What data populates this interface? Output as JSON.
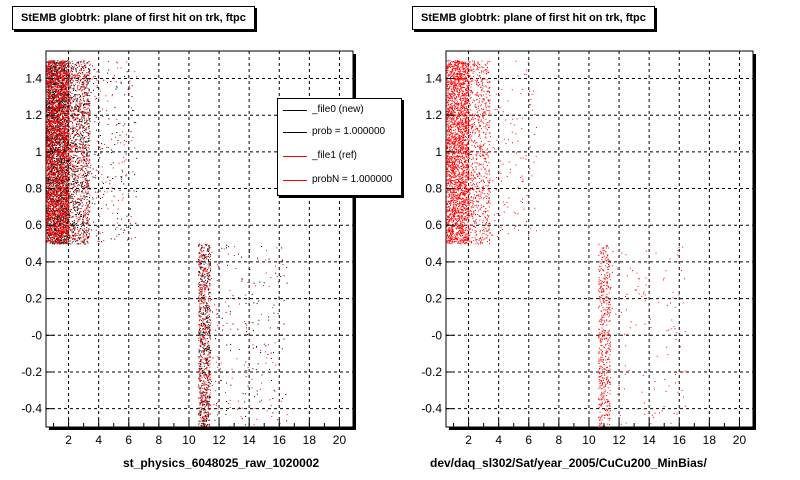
{
  "footer": "",
  "chart_data": [
    {
      "type": "scatter",
      "title": "StEMB globtrk: plane of first hit on trk, ftpc",
      "xlabel": "st_physics_6048025_raw_1020002",
      "ylabel": "",
      "xlim": [
        0.5,
        20.9
      ],
      "ylim": [
        -0.5,
        1.55
      ],
      "x_ticks": [
        2,
        4,
        6,
        8,
        10,
        12,
        14,
        16,
        18,
        20
      ],
      "y_ticks": [
        -0.4,
        -0.2,
        0,
        0.2,
        0.4,
        0.6,
        0.8,
        1,
        1.2,
        1.4
      ],
      "y_tick_labels": [
        "-0.4",
        "-0.2",
        "-0",
        "0.2",
        "0.4",
        "0.6",
        "0.8",
        "1",
        "1.2",
        "1.4"
      ],
      "grid": true,
      "legend_position": "top-right",
      "legend": [
        {
          "label": "_file0 (new)",
          "color": "#000000"
        },
        {
          "label": "prob = 1.000000",
          "color": "#000000"
        },
        {
          "label": "_file1 (ref)",
          "color": "#ff0000"
        },
        {
          "label": "probN = 1.000000",
          "color": "#ff0000"
        }
      ],
      "series": [
        {
          "color": "#000000",
          "regions": [
            {
              "x": [
                0.5,
                2.0
              ],
              "y": [
                0.5,
                1.5
              ],
              "density": "very high"
            },
            {
              "x": [
                2.0,
                3.4
              ],
              "y": [
                0.5,
                1.5
              ],
              "density": "medium"
            },
            {
              "x": [
                3.4,
                6.5
              ],
              "y": [
                0.5,
                1.5
              ],
              "density": "low"
            },
            {
              "x": [
                10.6,
                11.4
              ],
              "y": [
                -0.5,
                0.5
              ],
              "density": "high"
            },
            {
              "x": [
                11.4,
                16.5
              ],
              "y": [
                -0.5,
                0.5
              ],
              "density": "low"
            }
          ]
        },
        {
          "color": "#ff0000",
          "regions": [
            {
              "x": [
                0.5,
                2.0
              ],
              "y": [
                0.5,
                1.5
              ],
              "density": "very high"
            },
            {
              "x": [
                2.0,
                3.4
              ],
              "y": [
                0.5,
                1.5
              ],
              "density": "medium"
            },
            {
              "x": [
                3.4,
                6.5
              ],
              "y": [
                0.5,
                1.5
              ],
              "density": "low"
            },
            {
              "x": [
                10.6,
                11.4
              ],
              "y": [
                -0.5,
                0.5
              ],
              "density": "high"
            },
            {
              "x": [
                11.4,
                16.5
              ],
              "y": [
                -0.5,
                0.5
              ],
              "density": "low"
            }
          ]
        }
      ]
    },
    {
      "type": "scatter",
      "title": "StEMB globtrk: plane of first hit on trk, ftpc",
      "xlabel": "dev/daq_sl302/Sat/year_2005/CuCu200_MinBias/",
      "ylabel": "",
      "xlim": [
        0.5,
        20.9
      ],
      "ylim": [
        -0.5,
        1.55
      ],
      "x_ticks": [
        2,
        4,
        6,
        8,
        10,
        12,
        14,
        16,
        18,
        20
      ],
      "y_ticks": [
        -0.4,
        -0.2,
        0,
        0.2,
        0.4,
        0.6,
        0.8,
        1,
        1.2,
        1.4
      ],
      "y_tick_labels": [
        "-0.4",
        "-0.2",
        "-0",
        "0.2",
        "0.4",
        "0.6",
        "0.8",
        "1",
        "1.2",
        "1.4"
      ],
      "grid": true,
      "series": [
        {
          "color": "#ff0000",
          "regions": [
            {
              "x": [
                0.5,
                2.0
              ],
              "y": [
                0.5,
                1.5
              ],
              "density": "very high"
            },
            {
              "x": [
                2.0,
                3.4
              ],
              "y": [
                0.5,
                1.5
              ],
              "density": "medium"
            },
            {
              "x": [
                3.4,
                6.5
              ],
              "y": [
                0.5,
                1.5
              ],
              "density": "low"
            },
            {
              "x": [
                10.6,
                11.4
              ],
              "y": [
                -0.5,
                0.5
              ],
              "density": "high"
            },
            {
              "x": [
                11.4,
                16.5
              ],
              "y": [
                -0.5,
                0.5
              ],
              "density": "low"
            }
          ]
        }
      ]
    }
  ]
}
